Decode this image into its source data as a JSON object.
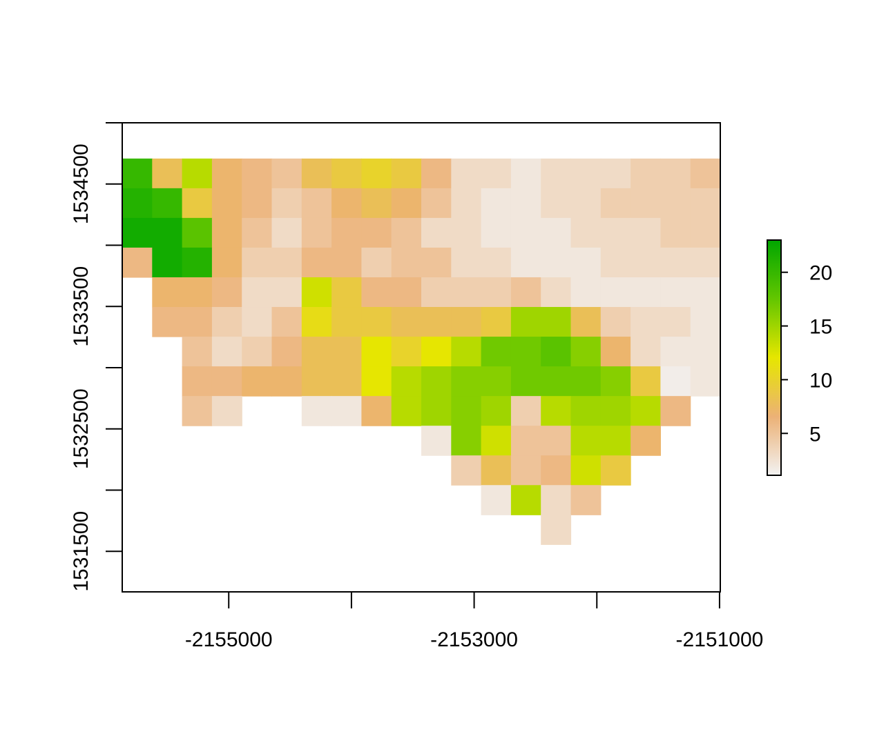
{
  "chart_data": {
    "type": "raster",
    "xlim": [
      -2155868,
      -2150994
    ],
    "ylim": [
      1531169,
      1535000
    ],
    "xticks": [
      {
        "value": -2155000,
        "label": "-2155000"
      },
      {
        "value": -2154000,
        "label": null
      },
      {
        "value": -2153000,
        "label": "-2153000"
      },
      {
        "value": -2152000,
        "label": null
      },
      {
        "value": -2151000,
        "label": "-2151000"
      }
    ],
    "yticks": [
      {
        "value": 1531500,
        "label": "1531500"
      },
      {
        "value": 1532000,
        "label": null
      },
      {
        "value": 1532500,
        "label": "1532500"
      },
      {
        "value": 1533000,
        "label": null
      },
      {
        "value": 1533500,
        "label": "1533500"
      },
      {
        "value": 1534000,
        "label": null
      },
      {
        "value": 1534500,
        "label": "1534500"
      },
      {
        "value": 1535000,
        "label": null
      }
    ],
    "raster_xlim": [
      -2155868,
      -2150994
    ],
    "raster_ylim": [
      1531556,
      1534708
    ],
    "zlim": [
      1.1,
      23
    ],
    "legend_ticks": [
      5,
      10,
      15,
      20
    ],
    "colors": [
      {
        "at": 0,
        "color": "#f2f2f2"
      },
      {
        "at": 0.125,
        "color": "#efd1b3"
      },
      {
        "at": 0.25,
        "color": "#ecb176"
      },
      {
        "at": 0.375,
        "color": "#e9cc3a"
      },
      {
        "at": 0.5,
        "color": "#e6e600"
      },
      {
        "at": 0.75,
        "color": "#63c600"
      },
      {
        "at": 1,
        "color": "#00a600"
      }
    ],
    "values": [
      [
        20,
        8,
        14,
        7,
        6,
        5,
        8,
        9,
        10,
        9,
        6,
        3,
        3,
        2,
        3,
        3,
        3,
        4,
        4,
        5
      ],
      [
        21,
        20,
        9,
        7,
        6,
        4,
        5,
        7,
        8,
        7,
        5,
        3,
        2,
        2,
        3,
        3,
        4,
        4,
        4,
        4
      ],
      [
        22,
        22,
        18,
        7,
        5,
        3,
        5,
        6,
        6,
        5,
        3,
        3,
        2,
        2,
        2,
        3,
        3,
        3,
        4,
        4
      ],
      [
        6,
        22,
        21,
        7,
        4,
        4,
        6,
        6,
        4,
        5,
        5,
        3,
        3,
        2,
        2,
        2,
        3,
        3,
        3,
        3
      ],
      [
        null,
        7,
        7,
        6,
        3,
        3,
        13,
        9,
        6,
        6,
        4,
        4,
        4,
        5,
        3,
        2,
        2,
        2,
        2,
        2
      ],
      [
        null,
        6,
        6,
        4,
        3,
        5,
        11,
        9,
        9,
        8,
        8,
        8,
        9,
        15,
        15,
        8,
        4,
        3,
        3,
        2
      ],
      [
        null,
        null,
        5,
        3,
        4,
        6,
        8,
        8,
        12,
        10,
        12,
        14,
        17,
        17,
        18,
        16,
        7,
        3,
        2,
        2
      ],
      [
        null,
        null,
        6,
        6,
        7,
        7,
        8,
        8,
        12,
        14,
        15,
        16,
        16,
        17,
        17,
        17,
        16,
        9,
        1.5,
        2
      ],
      [
        null,
        null,
        5,
        3,
        null,
        null,
        2,
        2,
        7,
        14,
        15,
        16,
        15,
        4,
        14,
        15,
        15,
        14,
        6,
        null
      ],
      [
        null,
        null,
        null,
        null,
        null,
        null,
        null,
        null,
        null,
        null,
        2,
        16,
        13,
        5,
        5,
        14,
        14,
        7,
        null,
        null
      ],
      [
        null,
        null,
        null,
        null,
        null,
        null,
        null,
        null,
        null,
        null,
        null,
        4,
        8,
        5,
        6,
        13,
        9,
        null,
        null,
        null
      ],
      [
        null,
        null,
        null,
        null,
        null,
        null,
        null,
        null,
        null,
        null,
        null,
        null,
        2,
        14,
        3,
        5,
        null,
        null,
        null,
        null
      ],
      [
        null,
        null,
        null,
        null,
        null,
        null,
        null,
        null,
        null,
        null,
        null,
        null,
        null,
        null,
        3,
        null,
        null,
        null,
        null,
        null
      ]
    ]
  }
}
